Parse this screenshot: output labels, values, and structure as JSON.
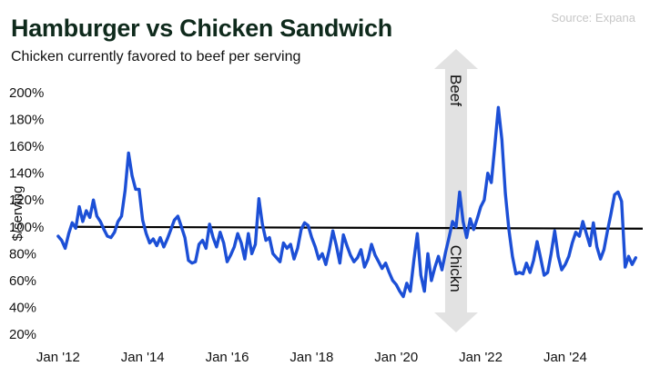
{
  "header": {
    "title": "Hamburger vs Chicken Sandwich",
    "subtitle": "Chicken currently favored to beef per serving",
    "source": "Source: Expana"
  },
  "chart_data": {
    "type": "line",
    "ylabel": "$/serving",
    "ylim": [
      20,
      200
    ],
    "yticks": [
      20,
      40,
      60,
      80,
      100,
      120,
      140,
      160,
      180,
      200
    ],
    "ytick_labels": [
      "20%",
      "40%",
      "60%",
      "80%",
      "100%",
      "120%",
      "140%",
      "160%",
      "180%",
      "200%"
    ],
    "xlim": [
      "2011-12",
      "2025-11"
    ],
    "xticks": [
      {
        "date": "2012-01",
        "label": "Jan '12"
      },
      {
        "date": "2014-01",
        "label": "Jan '14"
      },
      {
        "date": "2016-01",
        "label": "Jan '16"
      },
      {
        "date": "2018-01",
        "label": "Jan '18"
      },
      {
        "date": "2020-01",
        "label": "Jan '20"
      },
      {
        "date": "2022-01",
        "label": "Jan '22"
      },
      {
        "date": "2024-01",
        "label": "Jan '24"
      }
    ],
    "reference_line": {
      "value": 100,
      "color": "#000000"
    },
    "line_color": "#1c4fd6",
    "annotation": {
      "up_label": "Beef",
      "down_label": "Chickn",
      "date": "2021-06",
      "y_top": 200,
      "y_bottom": 20
    },
    "series": [
      {
        "points": [
          [
            "2012-01",
            93
          ],
          [
            "2012-02",
            90
          ],
          [
            "2012-03",
            84
          ],
          [
            "2012-04",
            95
          ],
          [
            "2012-05",
            103
          ],
          [
            "2012-06",
            99
          ],
          [
            "2012-07",
            115
          ],
          [
            "2012-08",
            104
          ],
          [
            "2012-09",
            112
          ],
          [
            "2012-10",
            107
          ],
          [
            "2012-11",
            120
          ],
          [
            "2012-12",
            108
          ],
          [
            "2013-01",
            104
          ],
          [
            "2013-02",
            98
          ],
          [
            "2013-03",
            93
          ],
          [
            "2013-04",
            92
          ],
          [
            "2013-05",
            96
          ],
          [
            "2013-06",
            104
          ],
          [
            "2013-07",
            108
          ],
          [
            "2013-08",
            127
          ],
          [
            "2013-09",
            155
          ],
          [
            "2013-10",
            138
          ],
          [
            "2013-11",
            128
          ],
          [
            "2013-12",
            128
          ],
          [
            "2014-01",
            105
          ],
          [
            "2014-02",
            95
          ],
          [
            "2014-03",
            88
          ],
          [
            "2014-04",
            91
          ],
          [
            "2014-05",
            86
          ],
          [
            "2014-06",
            92
          ],
          [
            "2014-07",
            85
          ],
          [
            "2014-08",
            91
          ],
          [
            "2014-09",
            98
          ],
          [
            "2014-10",
            105
          ],
          [
            "2014-11",
            108
          ],
          [
            "2014-12",
            100
          ],
          [
            "2015-01",
            92
          ],
          [
            "2015-02",
            75
          ],
          [
            "2015-03",
            73
          ],
          [
            "2015-04",
            74
          ],
          [
            "2015-05",
            87
          ],
          [
            "2015-06",
            90
          ],
          [
            "2015-07",
            84
          ],
          [
            "2015-08",
            102
          ],
          [
            "2015-09",
            92
          ],
          [
            "2015-10",
            85
          ],
          [
            "2015-11",
            96
          ],
          [
            "2015-12",
            88
          ],
          [
            "2016-01",
            74
          ],
          [
            "2016-02",
            79
          ],
          [
            "2016-03",
            85
          ],
          [
            "2016-04",
            95
          ],
          [
            "2016-05",
            88
          ],
          [
            "2016-06",
            76
          ],
          [
            "2016-07",
            95
          ],
          [
            "2016-08",
            80
          ],
          [
            "2016-09",
            87
          ],
          [
            "2016-10",
            121
          ],
          [
            "2016-11",
            102
          ],
          [
            "2016-12",
            90
          ],
          [
            "2017-01",
            92
          ],
          [
            "2017-02",
            80
          ],
          [
            "2017-03",
            77
          ],
          [
            "2017-04",
            74
          ],
          [
            "2017-05",
            88
          ],
          [
            "2017-06",
            84
          ],
          [
            "2017-07",
            87
          ],
          [
            "2017-08",
            76
          ],
          [
            "2017-09",
            84
          ],
          [
            "2017-10",
            98
          ],
          [
            "2017-11",
            103
          ],
          [
            "2017-12",
            101
          ],
          [
            "2018-01",
            92
          ],
          [
            "2018-02",
            85
          ],
          [
            "2018-03",
            76
          ],
          [
            "2018-04",
            80
          ],
          [
            "2018-05",
            72
          ],
          [
            "2018-06",
            83
          ],
          [
            "2018-07",
            97
          ],
          [
            "2018-08",
            86
          ],
          [
            "2018-09",
            73
          ],
          [
            "2018-10",
            94
          ],
          [
            "2018-11",
            86
          ],
          [
            "2018-12",
            79
          ],
          [
            "2019-01",
            74
          ],
          [
            "2019-02",
            77
          ],
          [
            "2019-03",
            83
          ],
          [
            "2019-04",
            70
          ],
          [
            "2019-05",
            76
          ],
          [
            "2019-06",
            87
          ],
          [
            "2019-07",
            79
          ],
          [
            "2019-08",
            74
          ],
          [
            "2019-09",
            69
          ],
          [
            "2019-10",
            73
          ],
          [
            "2019-11",
            66
          ],
          [
            "2019-12",
            60
          ],
          [
            "2020-01",
            57
          ],
          [
            "2020-02",
            52
          ],
          [
            "2020-03",
            48
          ],
          [
            "2020-04",
            58
          ],
          [
            "2020-05",
            52
          ],
          [
            "2020-06",
            75
          ],
          [
            "2020-07",
            95
          ],
          [
            "2020-08",
            64
          ],
          [
            "2020-09",
            52
          ],
          [
            "2020-10",
            80
          ],
          [
            "2020-11",
            60
          ],
          [
            "2020-12",
            70
          ],
          [
            "2021-01",
            78
          ],
          [
            "2021-02",
            68
          ],
          [
            "2021-03",
            81
          ],
          [
            "2021-04",
            92
          ],
          [
            "2021-05",
            104
          ],
          [
            "2021-06",
            100
          ],
          [
            "2021-07",
            126
          ],
          [
            "2021-08",
            104
          ],
          [
            "2021-09",
            92
          ],
          [
            "2021-10",
            106
          ],
          [
            "2021-11",
            98
          ],
          [
            "2021-12",
            106
          ],
          [
            "2022-01",
            115
          ],
          [
            "2022-02",
            120
          ],
          [
            "2022-03",
            140
          ],
          [
            "2022-04",
            133
          ],
          [
            "2022-05",
            160
          ],
          [
            "2022-06",
            189
          ],
          [
            "2022-07",
            165
          ],
          [
            "2022-08",
            125
          ],
          [
            "2022-09",
            98
          ],
          [
            "2022-10",
            78
          ],
          [
            "2022-11",
            65
          ],
          [
            "2022-12",
            66
          ],
          [
            "2023-01",
            65
          ],
          [
            "2023-02",
            73
          ],
          [
            "2023-03",
            66
          ],
          [
            "2023-04",
            75
          ],
          [
            "2023-05",
            89
          ],
          [
            "2023-06",
            77
          ],
          [
            "2023-07",
            64
          ],
          [
            "2023-08",
            66
          ],
          [
            "2023-09",
            80
          ],
          [
            "2023-10",
            97
          ],
          [
            "2023-11",
            78
          ],
          [
            "2023-12",
            68
          ],
          [
            "2024-01",
            72
          ],
          [
            "2024-02",
            78
          ],
          [
            "2024-03",
            88
          ],
          [
            "2024-04",
            96
          ],
          [
            "2024-05",
            93
          ],
          [
            "2024-06",
            104
          ],
          [
            "2024-07",
            95
          ],
          [
            "2024-08",
            86
          ],
          [
            "2024-09",
            103
          ],
          [
            "2024-10",
            85
          ],
          [
            "2024-11",
            76
          ],
          [
            "2024-12",
            83
          ],
          [
            "2025-01",
            97
          ],
          [
            "2025-02",
            110
          ],
          [
            "2025-03",
            124
          ],
          [
            "2025-04",
            126
          ],
          [
            "2025-05",
            119
          ],
          [
            "2025-06",
            70
          ],
          [
            "2025-07",
            78
          ],
          [
            "2025-08",
            72
          ],
          [
            "2025-09",
            77
          ]
        ]
      }
    ]
  }
}
